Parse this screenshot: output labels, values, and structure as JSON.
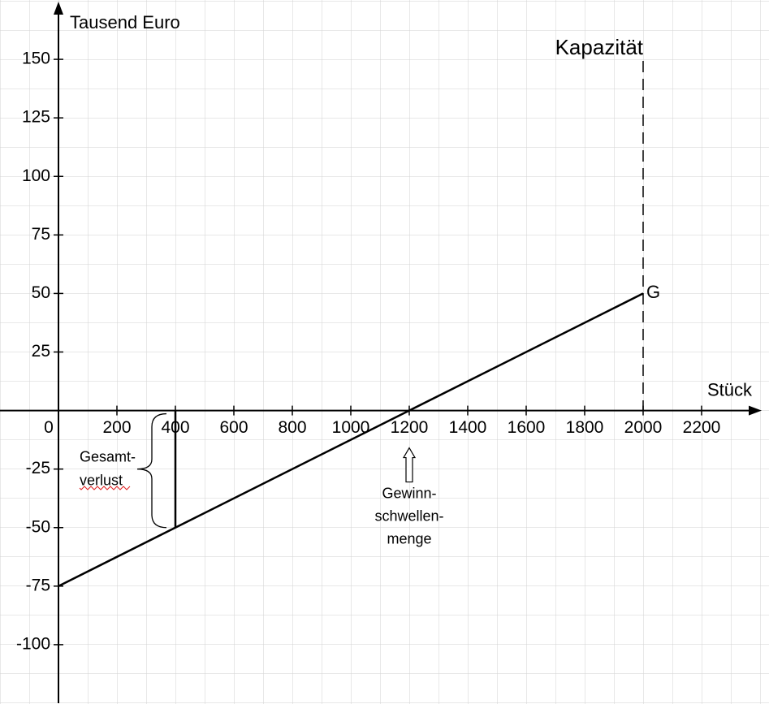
{
  "chart_data": {
    "type": "line",
    "y_axis_label": "Tausend Euro",
    "x_axis_label": "Stück",
    "x": [
      0,
      400,
      1200,
      2000
    ],
    "series": [
      {
        "color": "#000000",
        "values": [
          -75,
          -50,
          0,
          50
        ]
      }
    ],
    "xlim": [
      -200,
      2400
    ],
    "ylim": [
      -125,
      175
    ],
    "xticks": [
      0,
      200,
      400,
      600,
      800,
      1000,
      1200,
      1400,
      1600,
      1800,
      2000,
      2200
    ],
    "yticks": [
      -100,
      -75,
      -50,
      -25,
      25,
      50,
      75,
      100,
      125,
      150
    ],
    "grid": true,
    "end_label": "G",
    "capacity": {
      "label": "Kapazität",
      "x": 2000
    },
    "loss_label": [
      "Gesamt-",
      "verlust"
    ],
    "break_even_label": [
      "Gewinn-",
      "schwellen-",
      "menge"
    ]
  }
}
